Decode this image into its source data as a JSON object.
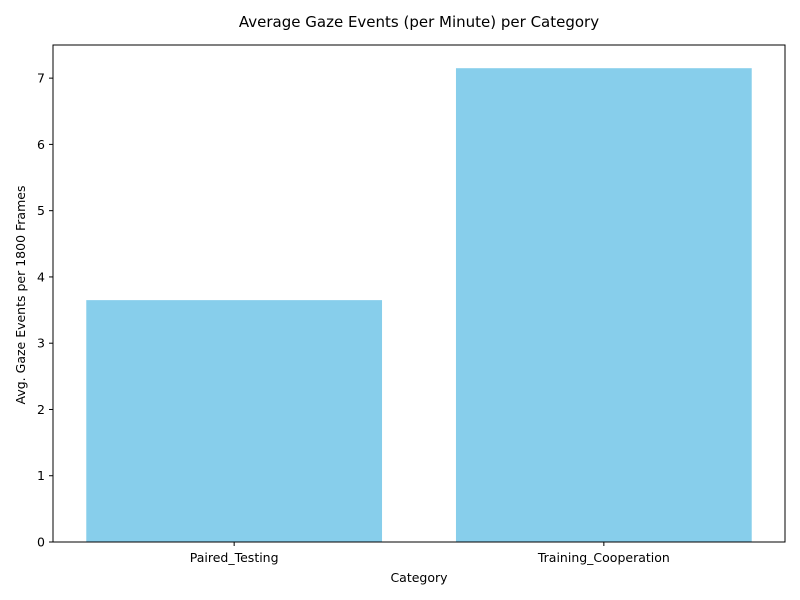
{
  "chart_data": {
    "type": "bar",
    "title": "Average Gaze Events (per Minute) per Category",
    "xlabel": "Category",
    "ylabel": "Avg. Gaze Events per 1800 Frames",
    "categories": [
      "Paired_Testing",
      "Training_Cooperation"
    ],
    "values": [
      3.65,
      7.15
    ],
    "ylim": [
      0,
      7.5
    ],
    "yticks": [
      0,
      1,
      2,
      3,
      4,
      5,
      6,
      7
    ],
    "grid": false,
    "bar_color": "#87CEEB"
  }
}
